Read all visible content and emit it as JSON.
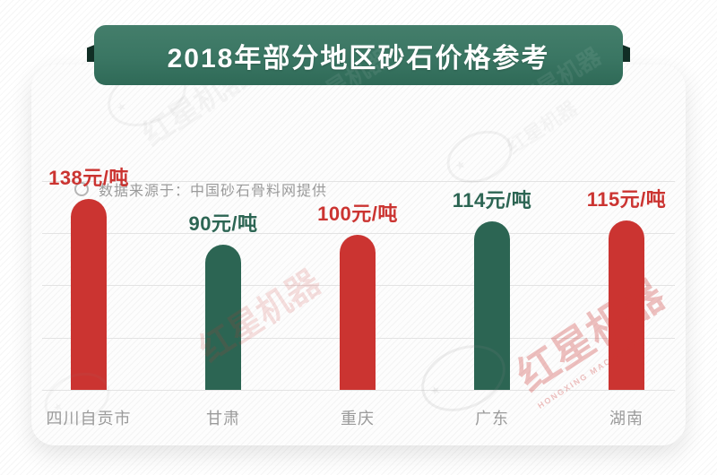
{
  "page": {
    "banner_title": "2018年部分地区砂石价格参考",
    "source_note": "数据来源于：中国砂石骨料网提供",
    "watermark": {
      "cn": "红星机器",
      "en": "HONGXING MACHINERY",
      "star_glyph": "★"
    }
  },
  "colors": {
    "bar_red": "#cb3431",
    "bar_green": "#2c6553",
    "banner_green": "#3a7663",
    "banner_fold": "#112e25",
    "gridline": "#e3e3e3",
    "category_text": "#9b9b9b",
    "source_text": "#9a9a9a",
    "title_text": "#ffffff"
  },
  "chart_data": {
    "type": "bar",
    "title": "2018年部分地区砂石价格参考",
    "source_note": "数据来源于：中国砂石骨料网提供",
    "categories": [
      "四川自贡市",
      "甘肃",
      "重庆",
      "广东",
      "湖南"
    ],
    "values": [
      138,
      90,
      100,
      114,
      115
    ],
    "value_labels": [
      "138元/吨",
      "90元/吨",
      "100元/吨",
      "114元/吨",
      "115元/吨"
    ],
    "unit": "元/吨",
    "bar_colors": [
      "#cb3431",
      "#2c6553",
      "#cb3431",
      "#2c6553",
      "#cb3431"
    ],
    "label_colors": [
      "#cb3431",
      "#2c6553",
      "#cb3431",
      "#2c6553",
      "#cb3431"
    ],
    "grid": true,
    "gridline_count": 5,
    "legend": false,
    "xlabel": "",
    "ylabel": ""
  }
}
